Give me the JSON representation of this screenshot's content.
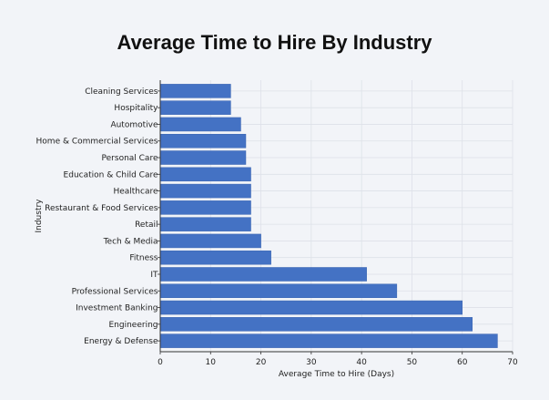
{
  "chart_data": {
    "type": "bar",
    "orientation": "horizontal",
    "title": "Average Time to Hire By Industry",
    "xlabel": "Average Time to Hire (Days)",
    "ylabel": "Industry",
    "xlim": [
      0,
      70
    ],
    "xticks": [
      "0",
      "10",
      "20",
      "30",
      "40",
      "50",
      "60",
      "70"
    ],
    "grid": true,
    "bar_color": "#4472c4",
    "categories": [
      "Cleaning Services",
      "Hospitality",
      "Automotive",
      "Home & Commercial Services",
      "Personal Care",
      "Education & Child Care",
      "Healthcare",
      "Restaurant & Food Services",
      "Retail",
      "Tech & Media",
      "Fitness",
      "IT",
      "Professional Services",
      "Investment Banking",
      "Engineering",
      "Energy & Defense"
    ],
    "values": [
      14,
      14,
      16,
      17,
      17,
      18,
      18,
      18,
      18,
      20,
      22,
      41,
      47,
      60,
      62,
      67
    ]
  }
}
